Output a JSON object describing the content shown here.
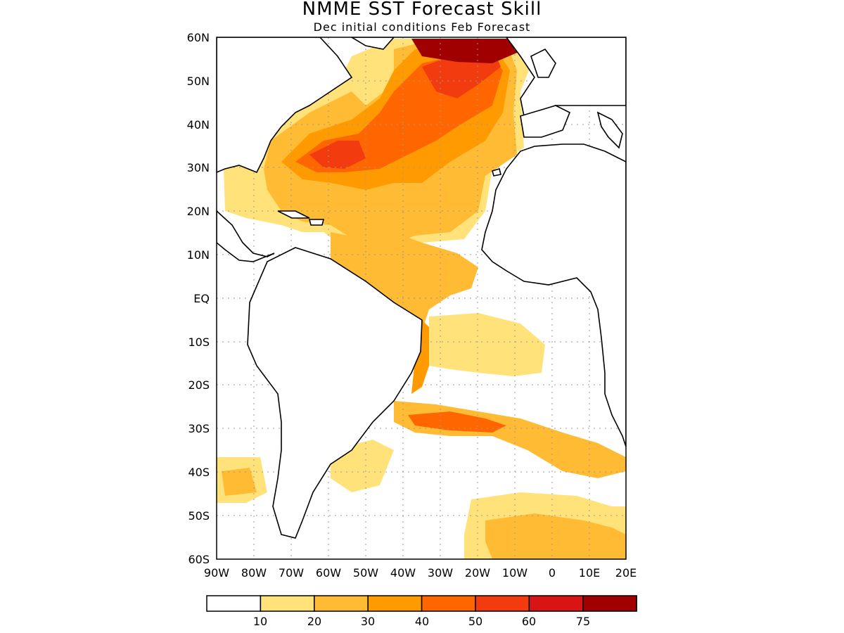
{
  "title": "NMME SST Forecast Skill",
  "subtitle": "Dec initial conditions  Feb Forecast",
  "map": {
    "region": "Atlantic Ocean",
    "lon_range": [
      -90,
      20
    ],
    "lat_range": [
      -60,
      60
    ],
    "lat_labels": [
      "60N",
      "50N",
      "40N",
      "30N",
      "20N",
      "10N",
      "EQ",
      "10S",
      "20S",
      "30S",
      "40S",
      "50S",
      "60S"
    ],
    "lon_labels": [
      "90W",
      "80W",
      "70W",
      "60W",
      "50W",
      "40W",
      "30W",
      "20W",
      "10W",
      "0",
      "10E",
      "20E"
    ],
    "grid": "dotted",
    "land_color": "#ffffff",
    "coastline_color": "#000000"
  },
  "legend": {
    "boundaries": [
      "10",
      "20",
      "30",
      "40",
      "50",
      "60",
      "75"
    ],
    "colors": [
      "#ffffff",
      "#ffe37a",
      "#ffbb33",
      "#ff9a00",
      "#ff6600",
      "#f23b0f",
      "#d81414",
      "#a00000"
    ]
  }
}
